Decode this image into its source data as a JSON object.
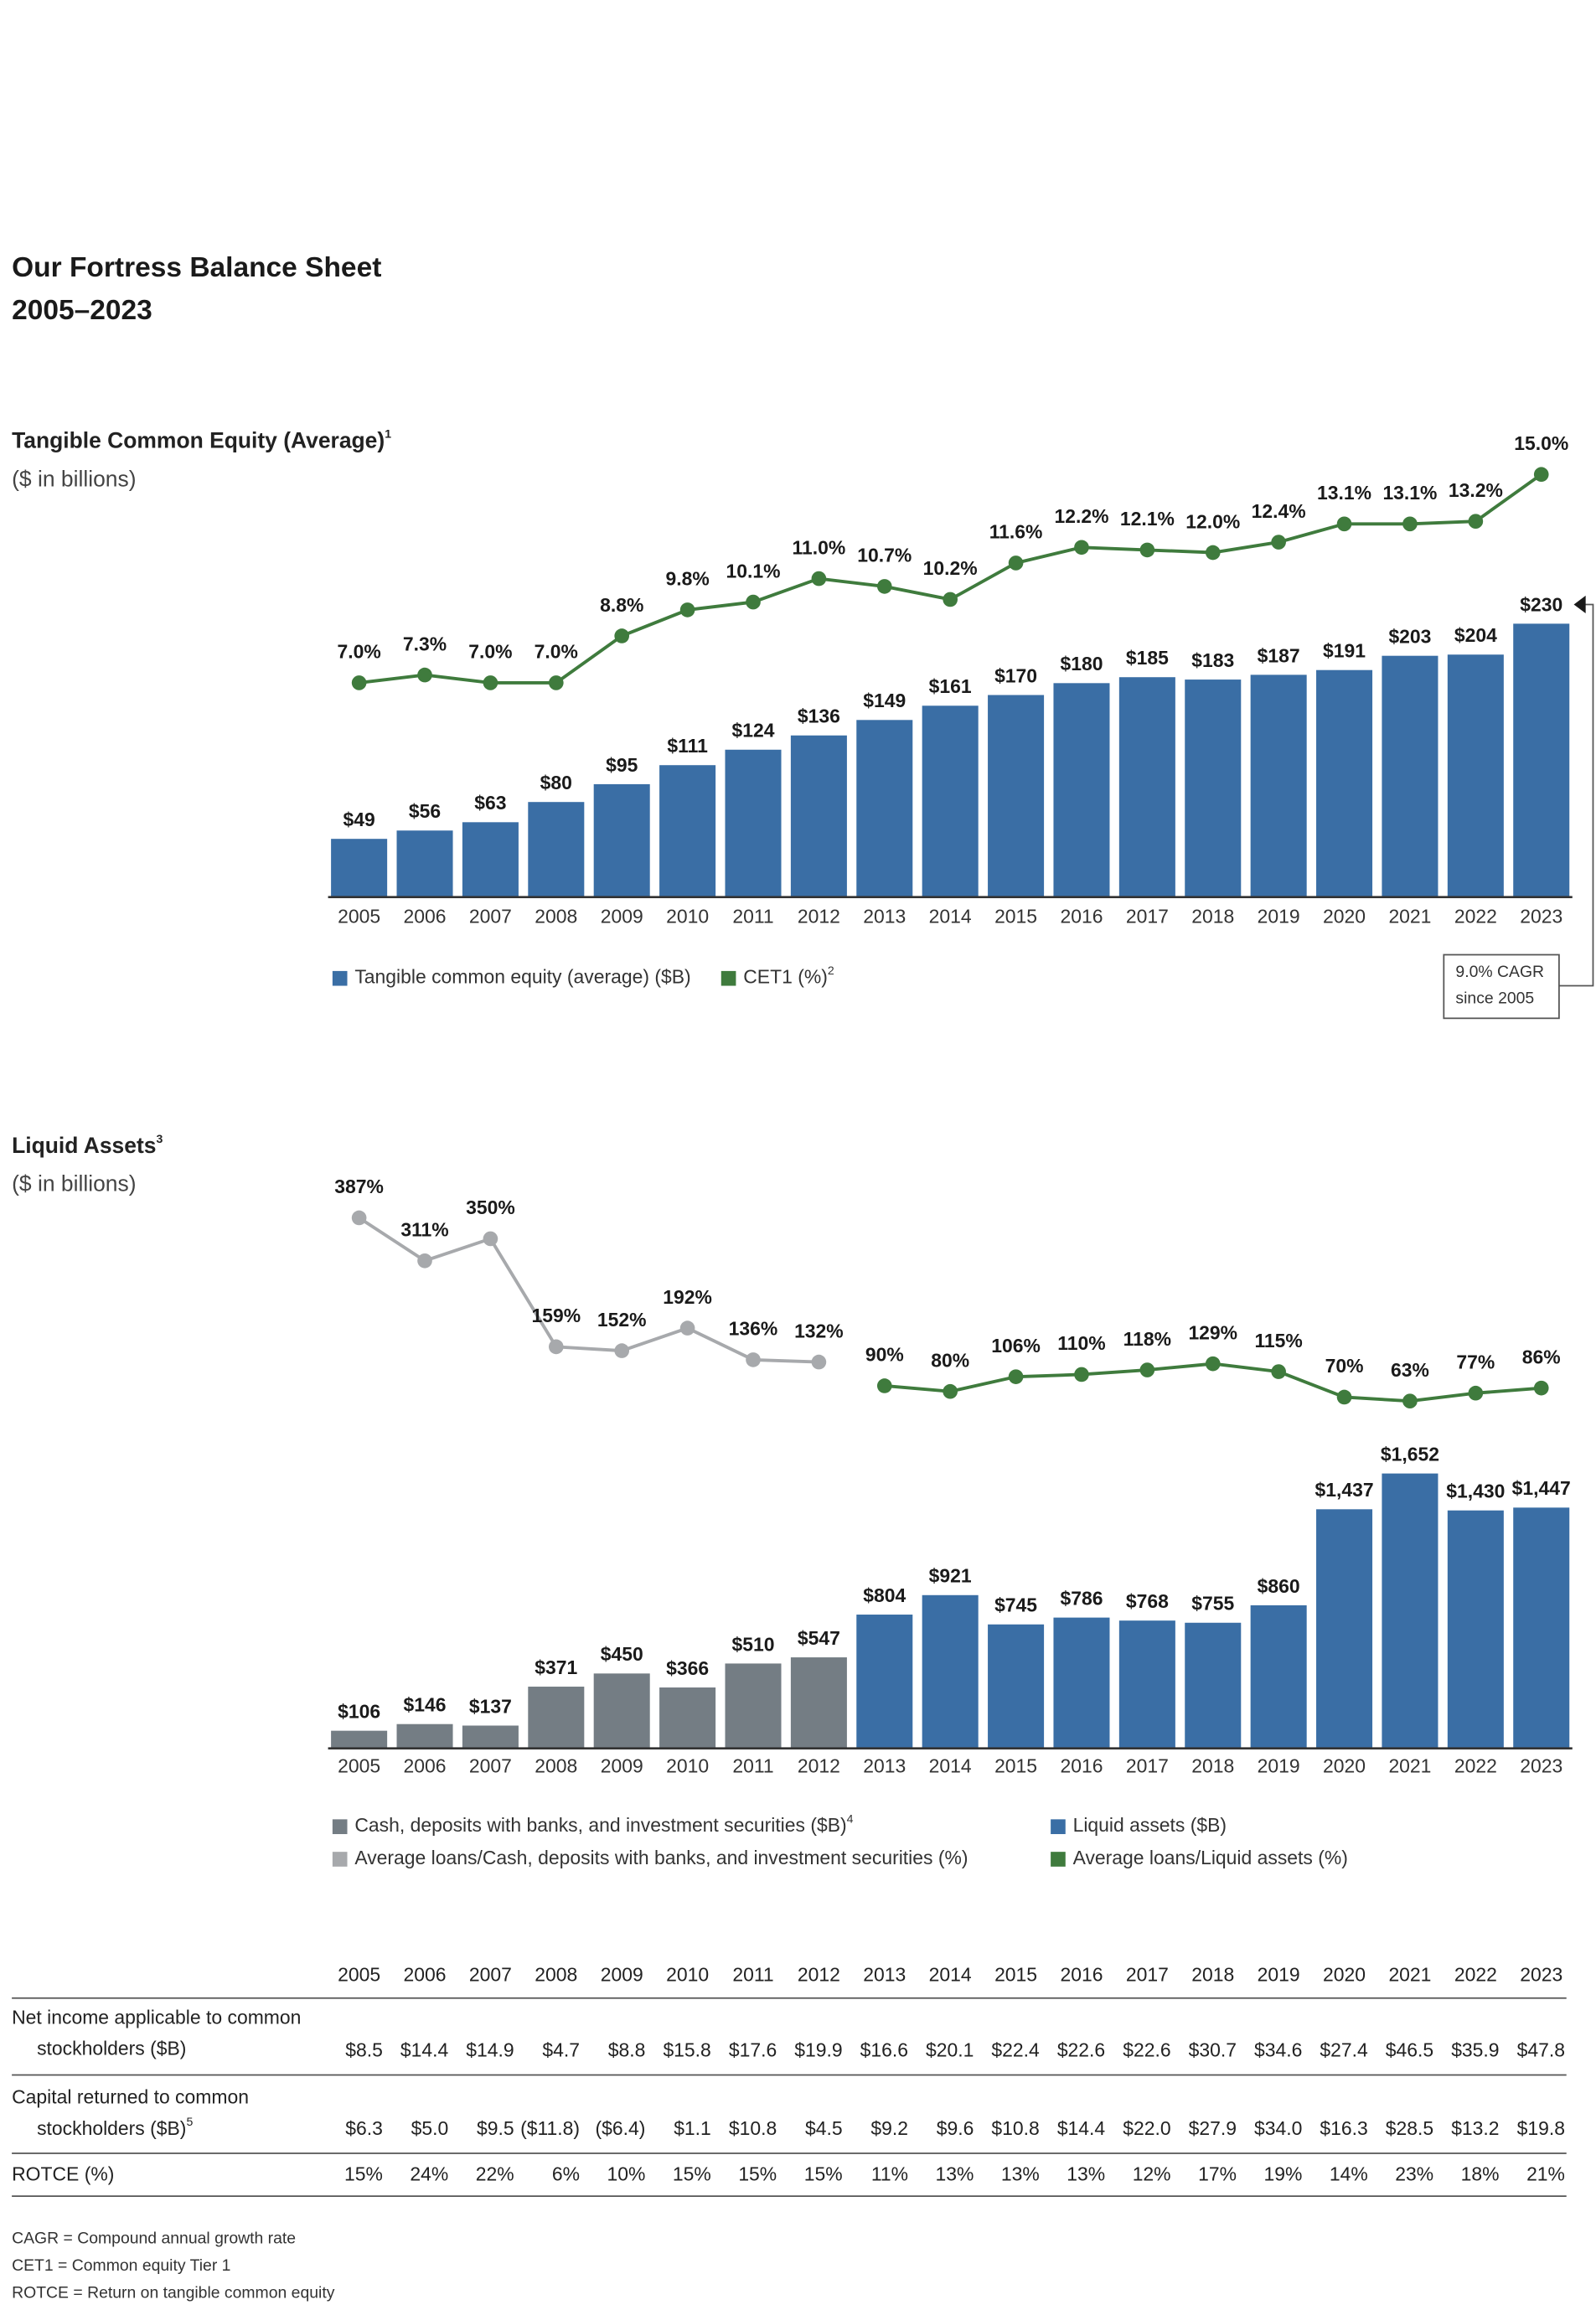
{
  "title": "Our Fortress Balance Sheet",
  "subtitle": "2005–2023",
  "chart_data": [
    {
      "type": "bar",
      "title": "Tangible Common Equity (Average)",
      "title_note": "1",
      "subtitle": "($ in billions)",
      "categories": [
        "2005",
        "2006",
        "2007",
        "2008",
        "2009",
        "2010",
        "2011",
        "2012",
        "2013",
        "2014",
        "2015",
        "2016",
        "2017",
        "2018",
        "2019",
        "2020",
        "2021",
        "2022",
        "2023"
      ],
      "series": [
        {
          "name": "Tangible common equity (average) ($B)",
          "type": "bar",
          "color": "#3a6ea5",
          "values": [
            49,
            56,
            63,
            80,
            95,
            111,
            124,
            136,
            149,
            161,
            170,
            180,
            185,
            183,
            187,
            191,
            203,
            204,
            230
          ],
          "value_labels": [
            "$49",
            "$56",
            "$63",
            "$80",
            "$95",
            "$111",
            "$124",
            "$136",
            "$149",
            "$161",
            "$170",
            "$180",
            "$185",
            "$183",
            "$187",
            "$191",
            "$203",
            "$204",
            "$230"
          ]
        },
        {
          "name": "CET1 (%)",
          "name_note": "2",
          "type": "line",
          "color": "#3f7b3d",
          "values": [
            7.0,
            7.3,
            7.0,
            7.0,
            8.8,
            9.8,
            10.1,
            11.0,
            10.7,
            10.2,
            11.6,
            12.2,
            12.1,
            12.0,
            12.4,
            13.1,
            13.1,
            13.2,
            15.0
          ],
          "value_labels": [
            "7.0%",
            "7.3%",
            "7.0%",
            "7.0%",
            "8.8%",
            "9.8%",
            "10.1%",
            "11.0%",
            "10.7%",
            "10.2%",
            "11.6%",
            "12.2%",
            "12.1%",
            "12.0%",
            "12.4%",
            "13.1%",
            "13.1%",
            "13.2%",
            "15.0%"
          ]
        }
      ],
      "annotation": [
        "9.0% CAGR",
        "since 2005"
      ]
    },
    {
      "type": "bar",
      "title": "Liquid Assets",
      "title_note": "3",
      "subtitle": "($ in billions)",
      "categories": [
        "2005",
        "2006",
        "2007",
        "2008",
        "2009",
        "2010",
        "2011",
        "2012",
        "2013",
        "2014",
        "2015",
        "2016",
        "2017",
        "2018",
        "2019",
        "2020",
        "2021",
        "2022",
        "2023"
      ],
      "series": [
        {
          "name": "Cash, deposits with banks, and investment securities ($B)",
          "name_note": "4",
          "type": "bar",
          "color": "#747d84",
          "values": [
            106,
            146,
            137,
            371,
            450,
            366,
            510,
            547,
            null,
            null,
            null,
            null,
            null,
            null,
            null,
            null,
            null,
            null,
            null
          ],
          "value_labels": [
            "$106",
            "$146",
            "$137",
            "$371",
            "$450",
            "$366",
            "$510",
            "$547",
            null,
            null,
            null,
            null,
            null,
            null,
            null,
            null,
            null,
            null,
            null
          ]
        },
        {
          "name": "Liquid assets ($B)",
          "type": "bar",
          "color": "#3a6ea5",
          "values": [
            null,
            null,
            null,
            null,
            null,
            null,
            null,
            null,
            804,
            921,
            745,
            786,
            768,
            755,
            860,
            1437,
            1652,
            1430,
            1447
          ],
          "value_labels": [
            null,
            null,
            null,
            null,
            null,
            null,
            null,
            null,
            "$804",
            "$921",
            "$745",
            "$786",
            "$768",
            "$755",
            "$860",
            "$1,437",
            "$1,652",
            "$1,430",
            "$1,447"
          ]
        },
        {
          "name": "Average loans/Cash, deposits with banks, and investment securities (%)",
          "type": "line",
          "color": "#a7a9ac",
          "values": [
            387,
            311,
            350,
            159,
            152,
            192,
            136,
            132,
            null,
            null,
            null,
            null,
            null,
            null,
            null,
            null,
            null,
            null,
            null
          ],
          "value_labels": [
            "387%",
            "311%",
            "350%",
            "159%",
            "152%",
            "192%",
            "136%",
            "132%",
            null,
            null,
            null,
            null,
            null,
            null,
            null,
            null,
            null,
            null,
            null
          ]
        },
        {
          "name": "Average loans/Liquid assets (%)",
          "type": "line",
          "color": "#3f7b3d",
          "values": [
            null,
            null,
            null,
            null,
            null,
            null,
            null,
            null,
            90,
            80,
            106,
            110,
            118,
            129,
            115,
            70,
            63,
            77,
            86
          ],
          "value_labels": [
            null,
            null,
            null,
            null,
            null,
            null,
            null,
            null,
            "90%",
            "80%",
            "106%",
            "110%",
            "118%",
            "129%",
            "115%",
            "70%",
            "63%",
            "77%",
            "86%"
          ]
        }
      ]
    }
  ],
  "table": {
    "header": [
      "2005",
      "2006",
      "2007",
      "2008",
      "2009",
      "2010",
      "2011",
      "2012",
      "2013",
      "2014",
      "2015",
      "2016",
      "2017",
      "2018",
      "2019",
      "2020",
      "2021",
      "2022",
      "2023"
    ],
    "rows": [
      {
        "label": [
          "Net income applicable to common",
          "stockholders ($B)"
        ],
        "values": [
          "$8.5",
          "$14.4",
          "$14.9",
          "$4.7",
          "$8.8",
          "$15.8",
          "$17.6",
          "$19.9",
          "$16.6",
          "$20.1",
          "$22.4",
          "$22.6",
          "$22.6",
          "$30.7",
          "$34.6",
          "$27.4",
          "$46.5",
          "$35.9",
          "$47.8"
        ]
      },
      {
        "label": [
          "Capital returned to common",
          "stockholders ($B)"
        ],
        "note": "5",
        "values": [
          "$6.3",
          "$5.0",
          "$9.5",
          "($11.8)",
          "($6.4)",
          "$1.1",
          "$10.8",
          "$4.5",
          "$9.2",
          "$9.6",
          "$10.8",
          "$14.4",
          "$22.0",
          "$27.9",
          "$34.0",
          "$16.3",
          "$28.5",
          "$13.2",
          "$19.8"
        ]
      },
      {
        "label": [
          "ROTCE (%)"
        ],
        "values": [
          "15%",
          "24%",
          "22%",
          "6%",
          "10%",
          "15%",
          "15%",
          "15%",
          "11%",
          "13%",
          "13%",
          "13%",
          "12%",
          "17%",
          "19%",
          "14%",
          "23%",
          "18%",
          "21%"
        ]
      }
    ]
  },
  "footnotes": [
    "CAGR = Compound annual growth rate",
    "CET1 = Common equity Tier 1",
    "ROTCE = Return on tangible common equity"
  ]
}
